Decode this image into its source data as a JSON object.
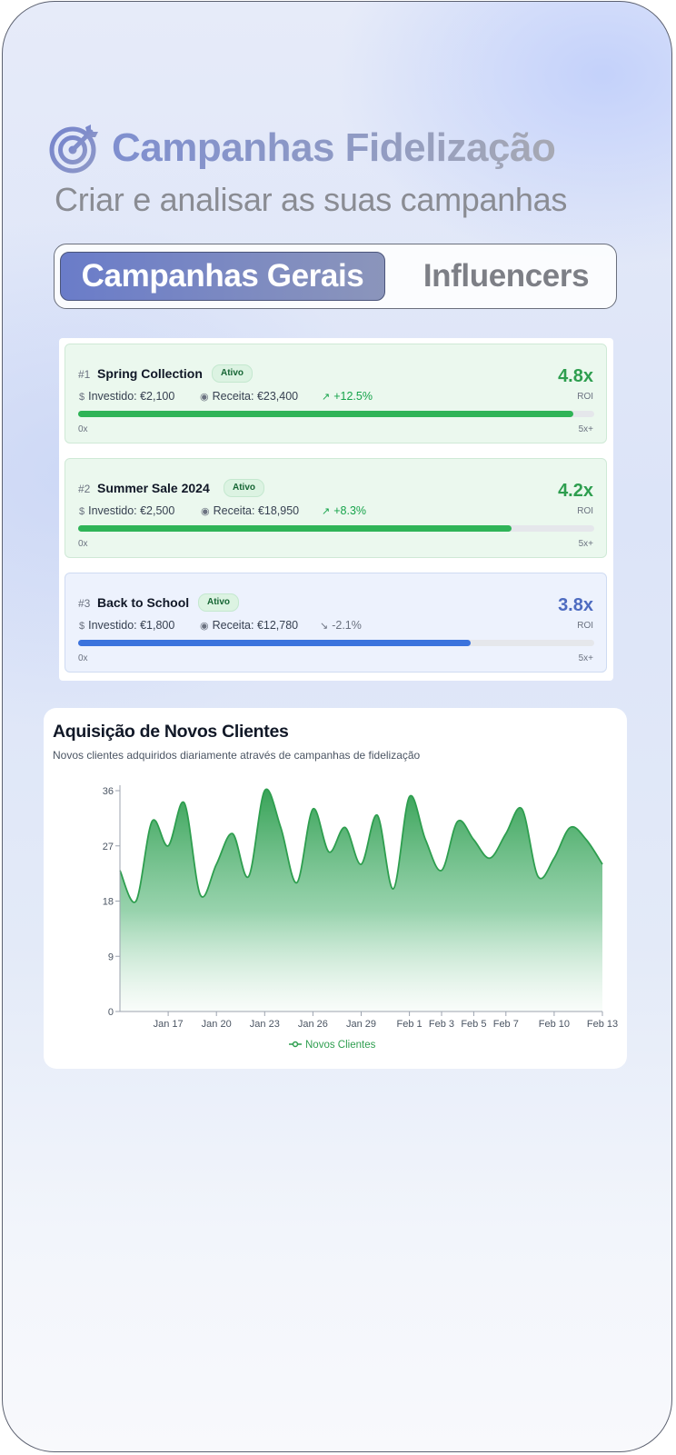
{
  "header": {
    "title": "Campanhas Fidelização",
    "subtitle": "Criar e analisar as suas campanhas",
    "icon": "target-icon"
  },
  "tabs": [
    {
      "label": "Campanhas Gerais",
      "active": true
    },
    {
      "label": "Influencers",
      "active": false
    }
  ],
  "campaigns": [
    {
      "rank": "#1",
      "name": "Spring Collection",
      "status": "Ativo",
      "invested": "Investido: €2,100",
      "revenue": "Receita: €23,400",
      "trend": "+12.5%",
      "trend_direction": "up",
      "roi": "4.8x",
      "roi_label": "ROI",
      "roi_progress": 0.96,
      "scale_min": "0x",
      "scale_max": "5x+"
    },
    {
      "rank": "#2",
      "name": "Summer Sale 2024",
      "status": "Ativo",
      "invested": "Investido: €2,500",
      "revenue": "Receita: €18,950",
      "trend": "+8.3%",
      "trend_direction": "up",
      "roi": "4.2x",
      "roi_label": "ROI",
      "roi_progress": 0.84,
      "scale_min": "0x",
      "scale_max": "5x+"
    },
    {
      "rank": "#3",
      "name": "Back to School",
      "status": "Ativo",
      "invested": "Investido: €1,800",
      "revenue": "Receita: €12,780",
      "trend": "-2.1%",
      "trend_direction": "down",
      "roi": "3.8x",
      "roi_label": "ROI",
      "roi_progress": 0.76,
      "scale_min": "0x",
      "scale_max": "5x+"
    }
  ],
  "colors": {
    "positive": "#2e9e4f",
    "bar_green": "#2fb457",
    "bar_blue": "#3b73dd",
    "chart_line": "#2e9e4f"
  },
  "chart_data": {
    "type": "area",
    "title": "Aquisição de Novos Clientes",
    "subtitle": "Novos clientes adquiridos diariamente através de campanhas de fidelização",
    "x": [
      "Jan 14",
      "Jan 15",
      "Jan 16",
      "Jan 17",
      "Jan 18",
      "Jan 19",
      "Jan 20",
      "Jan 21",
      "Jan 22",
      "Jan 23",
      "Jan 24",
      "Jan 25",
      "Jan 26",
      "Jan 27",
      "Jan 28",
      "Jan 29",
      "Jan 30",
      "Jan 31",
      "Feb 1",
      "Feb 2",
      "Feb 3",
      "Feb 4",
      "Feb 5",
      "Feb 6",
      "Feb 7",
      "Feb 8",
      "Feb 9",
      "Feb 10",
      "Feb 11",
      "Feb 12",
      "Feb 13"
    ],
    "series": [
      {
        "name": "Novos Clientes",
        "values": [
          23,
          18,
          31,
          27,
          34,
          19,
          24,
          29,
          22,
          36,
          30,
          21,
          33,
          26,
          30,
          24,
          32,
          20,
          35,
          28,
          23,
          31,
          28,
          25,
          29,
          33,
          22,
          25,
          30,
          28,
          24
        ]
      }
    ],
    "x_ticks": [
      "Jan 17",
      "Jan 20",
      "Jan 23",
      "Jan 26",
      "Jan 29",
      "Feb 1",
      "Feb 3",
      "Feb 5",
      "Feb 7",
      "Feb 10",
      "Feb 13"
    ],
    "y_ticks": [
      0,
      9,
      18,
      27,
      36
    ],
    "ylim": [
      0,
      36
    ],
    "legend": "bottom",
    "grid": false
  }
}
